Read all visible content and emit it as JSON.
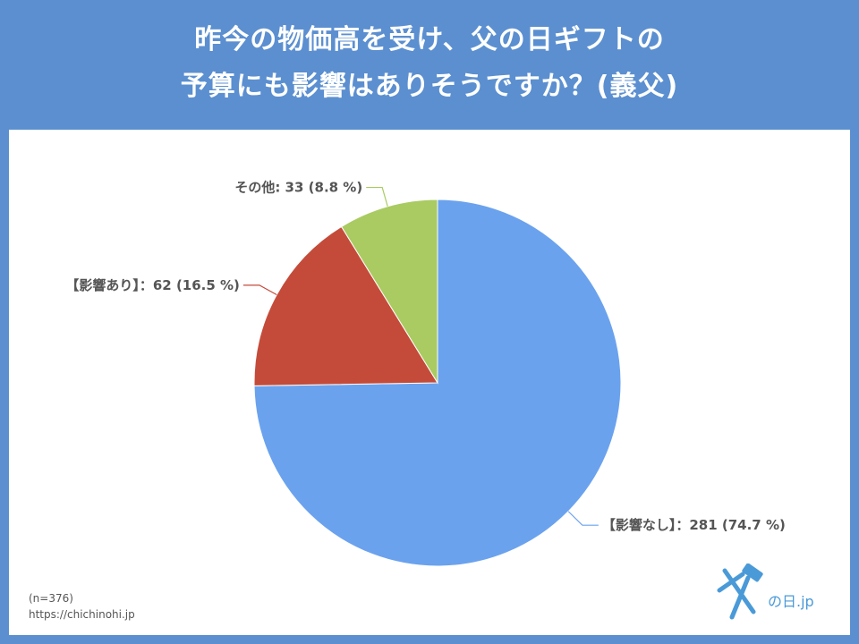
{
  "header": {
    "title_line1": "昨今の物価高を受け、父の日ギフトの",
    "title_line2": "予算にも影響はありそうですか？(義父)"
  },
  "chart_data": {
    "type": "pie",
    "start_angle_deg": 0,
    "direction": "clockwise",
    "slices": [
      {
        "label": "【影響なし】",
        "count": 281,
        "percent": 74.7,
        "color": "#6aa2ee",
        "display": "【影響なし】：281 (74.7 %)"
      },
      {
        "label": "【影響あり】",
        "count": 62,
        "percent": 16.5,
        "color": "#c44b3a",
        "display": "【影響あり】：62 (16.5 %)"
      },
      {
        "label": "その他",
        "count": 33,
        "percent": 8.8,
        "color": "#a9cb61",
        "display": "その他: 33 (8.8 %)"
      }
    ]
  },
  "footnote": {
    "n": "(n=376)",
    "url": "https://chichinohi.jp"
  },
  "logo": {
    "text": "父の日.jp",
    "color": "#4a9ad8"
  }
}
